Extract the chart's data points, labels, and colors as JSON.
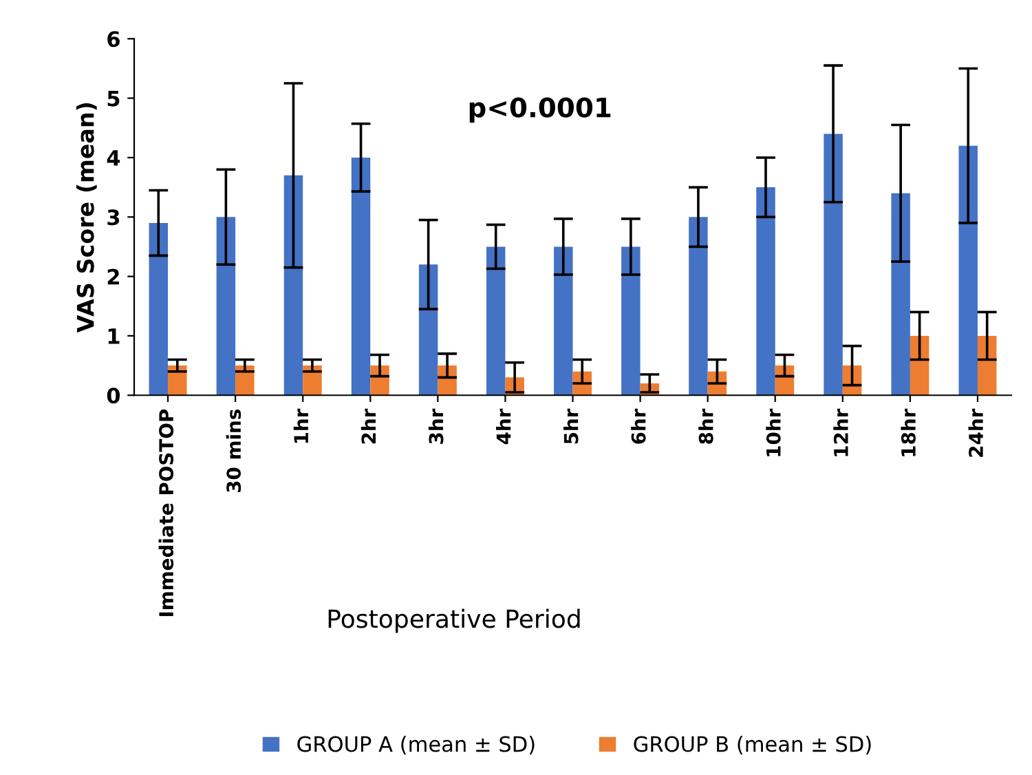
{
  "chart_data": {
    "type": "bar",
    "ylabel": "VAS Score (mean)",
    "xlabel": "Postoperative Period",
    "categories": [
      "Immediate POSTOP",
      "30 mins",
      "1hr",
      "2hr",
      "3hr",
      "4hr",
      "5hr",
      "6hr",
      "8hr",
      "10hr",
      "12hr",
      "18hr",
      "24hr"
    ],
    "series": [
      {
        "name": "GROUP A (mean ± SD)",
        "color": "#4472c4",
        "values": [
          2.9,
          3.0,
          3.7,
          4.0,
          2.2,
          2.5,
          2.5,
          2.5,
          3.0,
          3.5,
          4.4,
          3.4,
          4.2
        ],
        "errors": [
          0.55,
          0.8,
          1.55,
          0.57,
          0.75,
          0.37,
          0.47,
          0.47,
          0.5,
          0.5,
          1.15,
          1.15,
          1.3
        ]
      },
      {
        "name": "GROUP B (mean ± SD)",
        "color": "#ed7d31",
        "values": [
          0.5,
          0.5,
          0.5,
          0.5,
          0.5,
          0.3,
          0.4,
          0.2,
          0.4,
          0.5,
          0.5,
          1.0,
          1.0
        ],
        "errors": [
          0.1,
          0.1,
          0.1,
          0.18,
          0.2,
          0.25,
          0.2,
          0.15,
          0.2,
          0.18,
          0.33,
          0.4,
          0.4
        ]
      }
    ],
    "annotations": [
      "p<0.0001"
    ],
    "ylim": [
      0,
      6
    ],
    "yticks": [
      0,
      1,
      2,
      3,
      4,
      5,
      6
    ],
    "grid": false,
    "legend": "bottom"
  }
}
